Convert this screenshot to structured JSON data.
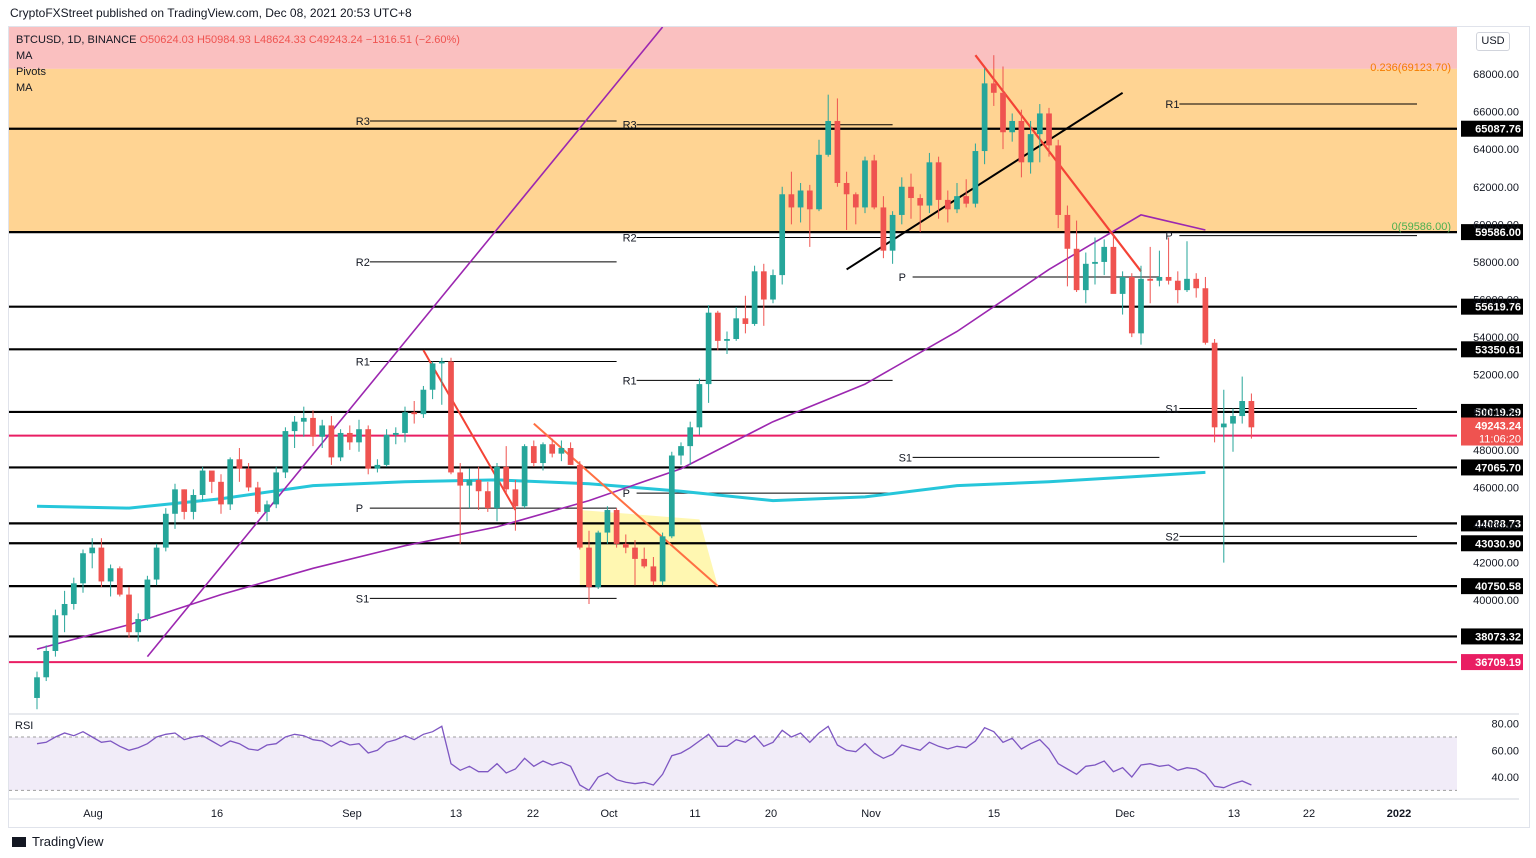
{
  "header": {
    "publisher": "CryptoFXStreet published on TradingView.com, Dec 08, 2021 20:53 UTC+8"
  },
  "legend": {
    "symbol": "BTCUSD, 1D, BINANCE",
    "ohlc": "O50624.03 H50984.93 L48624.33 C49243.24 −1316.51 (−2.60%)",
    "indicators": [
      "MA",
      "Pivots",
      "MA"
    ]
  },
  "currency_button": "USD",
  "rsi_label": "RSI",
  "footer": {
    "brand": "TradingView"
  },
  "colors": {
    "up": "#26a69a",
    "down": "#ef5350",
    "ma_fast": "#9c27b0",
    "ma_slow": "#26c6da",
    "fib_zone": "#ffcc80",
    "fib_top": "#f8a5a5",
    "triangle": "#fff59d",
    "magenta_line": "#e91e63"
  },
  "chart_data": {
    "type": "candlestick",
    "symbol": "BTCUSD",
    "timeframe": "1D",
    "exchange": "BINANCE",
    "price_range": [
      34000,
      70500
    ],
    "x_tick_labels": [
      "Aug",
      "16",
      "Sep",
      "13",
      "22",
      "Oct",
      "11",
      "20",
      "Nov",
      "15",
      "Dec",
      "13",
      "22",
      "2022"
    ],
    "y_ticks": [
      40000,
      42000,
      44000,
      46000,
      48000,
      50000,
      52000,
      54000,
      56000,
      58000,
      60000,
      62000,
      64000,
      66000,
      68000
    ],
    "y_tick_labels": [
      "40000.00",
      "42000.00",
      "44000.00",
      "46000.00",
      "48000.00",
      "50000.00",
      "52000.00",
      "54000.00",
      "56000.00",
      "58000.00",
      "60000.00",
      "62000.00",
      "64000.00",
      "66000.00",
      "68000.00"
    ],
    "horizontal_levels": [
      {
        "label": "65087.76",
        "value": 65087.76,
        "style": "black"
      },
      {
        "label": "59586.00",
        "value": 59586.0,
        "style": "black"
      },
      {
        "label": "55619.76",
        "value": 55619.76,
        "style": "black"
      },
      {
        "label": "53350.61",
        "value": 53350.61,
        "style": "black"
      },
      {
        "label": "50019.29",
        "value": 50019.29,
        "style": "black"
      },
      {
        "label": "48760.92",
        "value": 48760.92,
        "style": "magenta"
      },
      {
        "label": "47065.70",
        "value": 47065.7,
        "style": "black"
      },
      {
        "label": "44088.73",
        "value": 44088.73,
        "style": "black"
      },
      {
        "label": "43030.90",
        "value": 43030.9,
        "style": "black"
      },
      {
        "label": "40750.58",
        "value": 40750.58,
        "style": "black"
      },
      {
        "label": "38073.32",
        "value": 38073.32,
        "style": "black"
      },
      {
        "label": "36709.19",
        "value": 36709.19,
        "style": "magenta"
      }
    ],
    "last_price": {
      "label": "49243.24",
      "value": 49243.24,
      "countdown": "11:06:20"
    },
    "fib_labels": [
      {
        "text": "0.236(69123.70)",
        "value": 69123.7
      },
      {
        "text": "0(59586.00)",
        "value": 59586.0
      }
    ],
    "pivot_labels": [
      "R3",
      "R2",
      "R1",
      "P",
      "S1",
      "S2"
    ],
    "rsi": {
      "y_tick_labels": [
        "80.00",
        "60.00",
        "40.00"
      ],
      "y_ticks": [
        80,
        60,
        40
      ],
      "range": [
        25,
        85
      ],
      "band": [
        30,
        70
      ]
    },
    "candles": [
      [
        34800,
        36200,
        34200,
        35900
      ],
      [
        35900,
        37600,
        35700,
        37300
      ],
      [
        37300,
        39500,
        37000,
        39200
      ],
      [
        39200,
        40500,
        38300,
        39800
      ],
      [
        39800,
        41200,
        39500,
        40900
      ],
      [
        40900,
        42700,
        40400,
        42500
      ],
      [
        42500,
        43300,
        41700,
        42800
      ],
      [
        42800,
        43300,
        40700,
        41000
      ],
      [
        41000,
        41900,
        40200,
        41700
      ],
      [
        41700,
        41800,
        40200,
        40300
      ],
      [
        40300,
        40700,
        38000,
        38300
      ],
      [
        38300,
        39300,
        37800,
        39000
      ],
      [
        39000,
        41300,
        38900,
        41100
      ],
      [
        41100,
        43000,
        40800,
        42800
      ],
      [
        42800,
        44900,
        42600,
        44600
      ],
      [
        44600,
        46200,
        43800,
        45900
      ],
      [
        45900,
        45900,
        44300,
        44700
      ],
      [
        44700,
        45900,
        44300,
        45600
      ],
      [
        45600,
        47100,
        45300,
        46900
      ],
      [
        46900,
        46700,
        45700,
        46300
      ],
      [
        46300,
        46700,
        44600,
        45100
      ],
      [
        45100,
        47600,
        44800,
        47500
      ],
      [
        47500,
        48100,
        46300,
        47000
      ],
      [
        47000,
        47300,
        45800,
        46000
      ],
      [
        46000,
        46300,
        44600,
        44700
      ],
      [
        44700,
        45300,
        44200,
        45100
      ],
      [
        45100,
        47100,
        44900,
        46800
      ],
      [
        46800,
        49200,
        46500,
        49000
      ],
      [
        49000,
        49800,
        48100,
        49500
      ],
      [
        49500,
        50300,
        48700,
        49700
      ],
      [
        49700,
        50100,
        48200,
        48700
      ],
      [
        48700,
        49600,
        48100,
        49300
      ],
      [
        49300,
        49800,
        47200,
        47600
      ],
      [
        47600,
        49100,
        47400,
        48900
      ],
      [
        48900,
        49300,
        48000,
        48400
      ],
      [
        48400,
        49600,
        47900,
        49100
      ],
      [
        49100,
        49300,
        46700,
        47000
      ],
      [
        47000,
        47500,
        46800,
        47200
      ],
      [
        47200,
        49100,
        47100,
        48800
      ],
      [
        48800,
        49200,
        48300,
        48900
      ],
      [
        48900,
        50300,
        48400,
        50000
      ],
      [
        50000,
        50600,
        49400,
        49900
      ],
      [
        49900,
        51400,
        49700,
        51200
      ],
      [
        51200,
        52700,
        50700,
        52600
      ],
      [
        52600,
        52900,
        50400,
        52700
      ],
      [
        52700,
        52900,
        46700,
        46800
      ],
      [
        46800,
        47300,
        43000,
        46100
      ],
      [
        46100,
        47000,
        44900,
        46400
      ],
      [
        46400,
        47100,
        44800,
        45800
      ],
      [
        45800,
        46300,
        44700,
        44900
      ],
      [
        44900,
        47300,
        44200,
        47100
      ],
      [
        47100,
        48200,
        45700,
        45900
      ],
      [
        45900,
        46400,
        43700,
        45000
      ],
      [
        45000,
        48300,
        44900,
        48200
      ],
      [
        48200,
        48500,
        47100,
        47300
      ],
      [
        47300,
        48400,
        46900,
        48300
      ],
      [
        48300,
        48600,
        47600,
        47800
      ],
      [
        47800,
        48500,
        47400,
        48100
      ],
      [
        48100,
        48400,
        47200,
        47200
      ],
      [
        47200,
        47400,
        42700,
        42800
      ],
      [
        42800,
        43700,
        39800,
        40700
      ],
      [
        40700,
        43700,
        40600,
        43600
      ],
      [
        43600,
        45000,
        43000,
        44800
      ],
      [
        44800,
        44900,
        42800,
        43000
      ],
      [
        43000,
        43500,
        42500,
        42800
      ],
      [
        42800,
        43200,
        40800,
        42200
      ],
      [
        42200,
        42800,
        41700,
        41800
      ],
      [
        41800,
        42300,
        40800,
        41000
      ],
      [
        41000,
        43600,
        40800,
        43400
      ],
      [
        43400,
        47900,
        43300,
        47700
      ],
      [
        47700,
        48400,
        47200,
        48200
      ],
      [
        48200,
        49500,
        47200,
        49200
      ],
      [
        49200,
        51800,
        48800,
        51500
      ],
      [
        51500,
        55700,
        50500,
        55300
      ],
      [
        55300,
        55400,
        53300,
        53800
      ],
      [
        53800,
        54300,
        53100,
        53900
      ],
      [
        53900,
        55600,
        53800,
        55000
      ],
      [
        55000,
        56200,
        54200,
        54700
      ],
      [
        54700,
        57800,
        54600,
        57500
      ],
      [
        57500,
        57900,
        54600,
        56000
      ],
      [
        56000,
        57600,
        55800,
        57300
      ],
      [
        57300,
        62000,
        56800,
        61600
      ],
      [
        61600,
        62800,
        60000,
        60900
      ],
      [
        60900,
        62200,
        60100,
        61800
      ],
      [
        61800,
        62100,
        58800,
        60800
      ],
      [
        60800,
        64500,
        60700,
        63700
      ],
      [
        63700,
        66900,
        63600,
        65500
      ],
      [
        65500,
        66700,
        62000,
        62200
      ],
      [
        62200,
        62800,
        59700,
        61600
      ],
      [
        61600,
        61700,
        60000,
        60900
      ],
      [
        60900,
        63600,
        60600,
        63400
      ],
      [
        63400,
        63700,
        60800,
        60900
      ],
      [
        60900,
        61500,
        58200,
        58600
      ],
      [
        58600,
        60700,
        57900,
        60500
      ],
      [
        60500,
        62500,
        60000,
        62000
      ],
      [
        62000,
        62700,
        60300,
        61400
      ],
      [
        61400,
        61600,
        59600,
        61000
      ],
      [
        61000,
        63800,
        60600,
        63300
      ],
      [
        63300,
        63600,
        60300,
        61300
      ],
      [
        61300,
        61800,
        60100,
        60800
      ],
      [
        60800,
        62200,
        60600,
        61500
      ],
      [
        61500,
        62400,
        60900,
        61100
      ],
      [
        61100,
        64300,
        60900,
        63900
      ],
      [
        63900,
        68300,
        63200,
        67500
      ],
      [
        67500,
        69000,
        66300,
        67000
      ],
      [
        67000,
        68400,
        64000,
        64900
      ],
      [
        64900,
        65900,
        64400,
        65500
      ],
      [
        65500,
        66100,
        62500,
        63300
      ],
      [
        63300,
        65500,
        62700,
        64800
      ],
      [
        64800,
        66400,
        63300,
        65900
      ],
      [
        65900,
        66200,
        63600,
        64200
      ],
      [
        64200,
        64500,
        59800,
        60500
      ],
      [
        60500,
        61000,
        56700,
        58700
      ],
      [
        58700,
        60200,
        56400,
        56500
      ],
      [
        56500,
        58500,
        55800,
        57900
      ],
      [
        57900,
        59300,
        56800,
        58000
      ],
      [
        58000,
        59200,
        57300,
        58800
      ],
      [
        58800,
        59500,
        56400,
        56300
      ],
      [
        56300,
        57500,
        55200,
        57200
      ],
      [
        57200,
        57400,
        54000,
        54200
      ],
      [
        54200,
        57800,
        53600,
        57100
      ],
      [
        57100,
        58800,
        55800,
        57000
      ],
      [
        57000,
        58600,
        56700,
        57200
      ],
      [
        57200,
        59300,
        56800,
        57000
      ],
      [
        57000,
        57500,
        55800,
        56500
      ],
      [
        56500,
        59100,
        56400,
        57100
      ],
      [
        57100,
        57400,
        56100,
        56600
      ],
      [
        56600,
        57200,
        53600,
        53700
      ],
      [
        53700,
        53900,
        48400,
        49200
      ],
      [
        49200,
        51200,
        42000,
        49400
      ],
      [
        49400,
        50200,
        47900,
        49800
      ],
      [
        49800,
        51900,
        49400,
        50600
      ],
      [
        50600,
        51000,
        48600,
        49200
      ]
    ],
    "ma_slow": [
      [
        0,
        45000
      ],
      [
        10,
        44900
      ],
      [
        20,
        45400
      ],
      [
        30,
        46100
      ],
      [
        40,
        46300
      ],
      [
        50,
        46400
      ],
      [
        60,
        46200
      ],
      [
        70,
        45800
      ],
      [
        80,
        45300
      ],
      [
        90,
        45500
      ],
      [
        100,
        46100
      ],
      [
        110,
        46300
      ],
      [
        120,
        46600
      ],
      [
        127,
        46800
      ]
    ],
    "ma_fast": [
      [
        0,
        37400
      ],
      [
        10,
        38700
      ],
      [
        20,
        40300
      ],
      [
        30,
        41700
      ],
      [
        40,
        42900
      ],
      [
        50,
        43900
      ],
      [
        60,
        45300
      ],
      [
        70,
        47000
      ],
      [
        80,
        49500
      ],
      [
        90,
        51500
      ],
      [
        100,
        54300
      ],
      [
        110,
        57600
      ],
      [
        120,
        60500
      ],
      [
        127,
        59700
      ]
    ],
    "rsi_values": [
      65,
      66,
      70,
      73,
      71,
      74,
      70,
      66,
      67,
      63,
      60,
      62,
      65,
      70,
      72,
      73,
      68,
      70,
      71,
      67,
      63,
      67,
      65,
      61,
      60,
      64,
      65,
      70,
      72,
      71,
      68,
      67,
      63,
      67,
      64,
      65,
      58,
      60,
      66,
      68,
      71,
      68,
      72,
      74,
      78,
      50,
      45,
      48,
      44,
      44,
      50,
      43,
      46,
      54,
      48,
      52,
      49,
      51,
      48,
      34,
      30,
      40,
      43,
      38,
      36,
      35,
      36,
      34,
      42,
      56,
      58,
      62,
      67,
      72,
      63,
      63,
      68,
      66,
      71,
      63,
      66,
      75,
      70,
      73,
      66,
      73,
      78,
      64,
      60,
      59,
      65,
      58,
      54,
      57,
      64,
      62,
      60,
      66,
      63,
      61,
      63,
      62,
      67,
      77,
      74,
      66,
      69,
      61,
      65,
      68,
      61,
      50,
      46,
      42,
      48,
      49,
      52,
      44,
      47,
      40,
      49,
      50,
      48,
      49,
      45,
      47,
      46,
      42,
      33,
      32,
      35,
      37,
      34
    ]
  }
}
